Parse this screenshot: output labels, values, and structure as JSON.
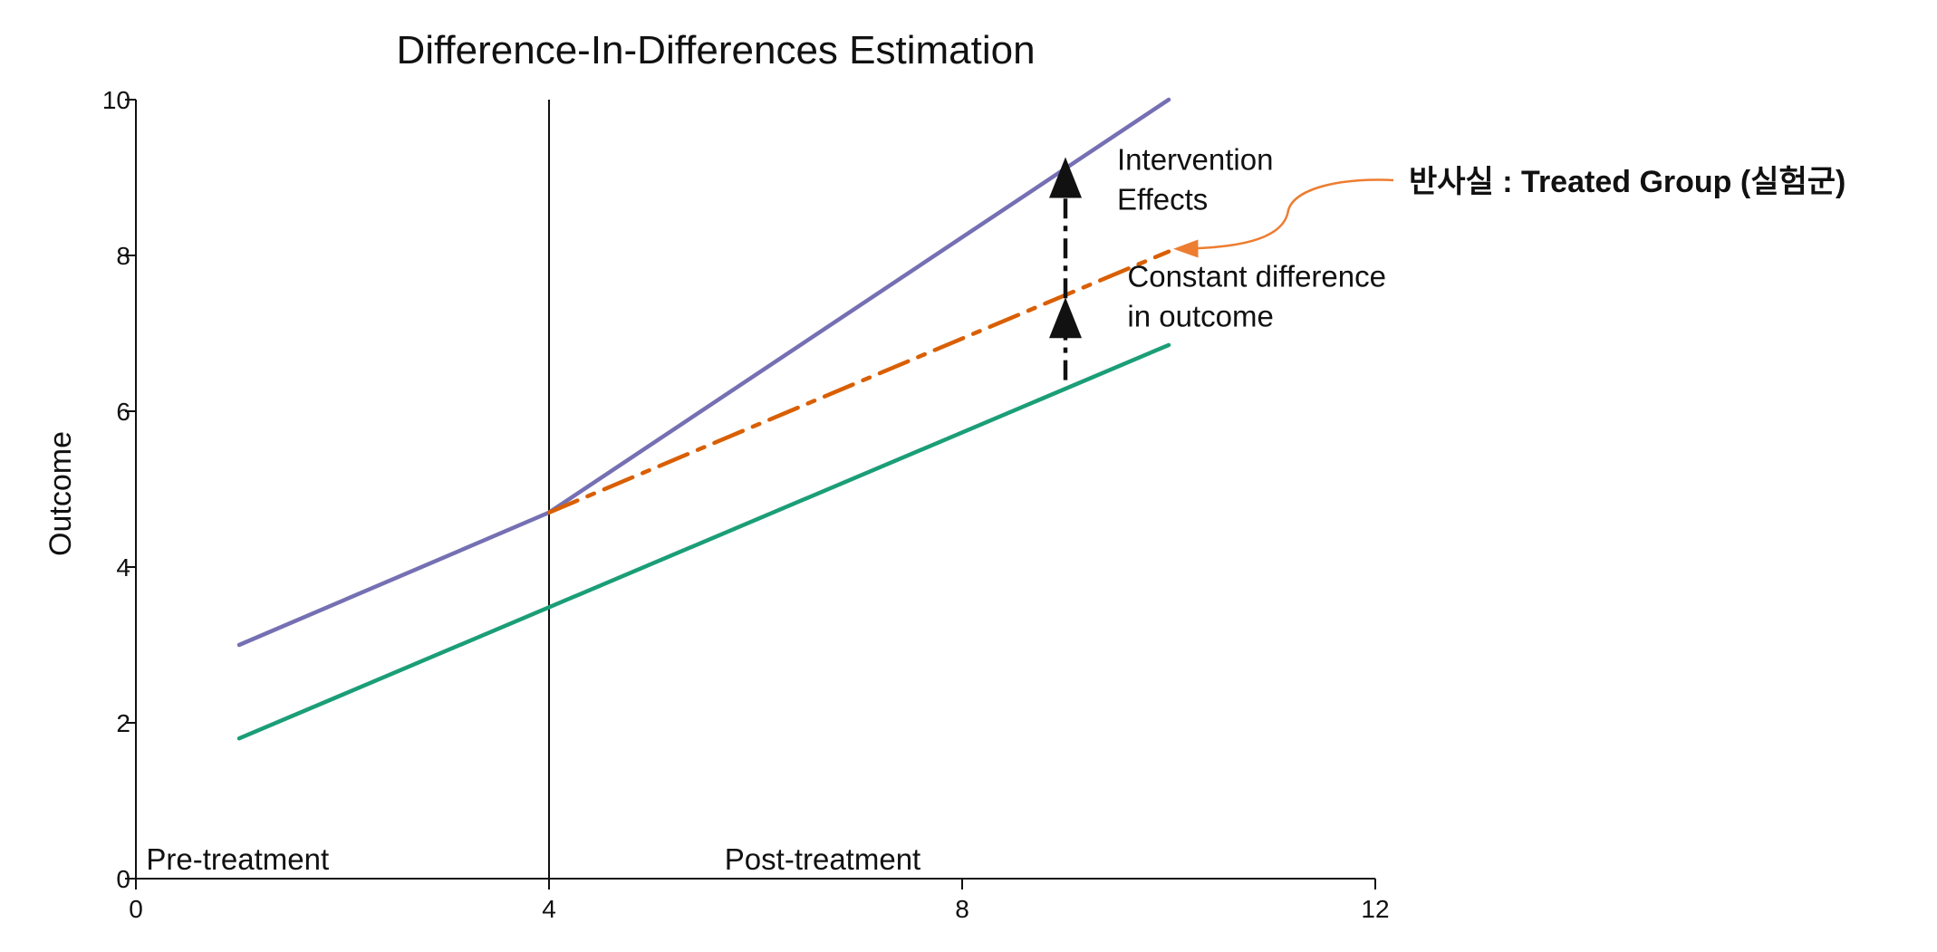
{
  "chart_data": {
    "type": "line",
    "title": "Difference-In-Differences Estimation",
    "xlabel": "",
    "ylabel": "Outcome",
    "xlim": [
      0,
      12
    ],
    "ylim": [
      0,
      10
    ],
    "x_ticks": [
      0,
      4,
      8,
      12
    ],
    "y_ticks": [
      0,
      2,
      4,
      6,
      8,
      10
    ],
    "grid": false,
    "series": [
      {
        "style": "solid",
        "color": "#7570b3",
        "x": [
          1,
          4,
          10
        ],
        "y": [
          3.0,
          4.7,
          10.0
        ]
      },
      {
        "style": "solid",
        "color": "#1b9e77",
        "x": [
          1,
          10
        ],
        "y": [
          1.8,
          6.85
        ]
      },
      {
        "style": "dash-dot",
        "color": "#d95f02",
        "x": [
          4,
          10
        ],
        "y": [
          4.7,
          8.05
        ]
      }
    ],
    "vertical_line": {
      "x": 4,
      "color": "#111111"
    },
    "effect_arrows": [
      {
        "x": 9,
        "from": 7.45,
        "to": 9.0
      },
      {
        "x": 9,
        "from": 6.4,
        "to": 7.2
      }
    ],
    "period_labels": [
      {
        "text": "Pre-treatment",
        "x": 0.1,
        "y": 0.0
      },
      {
        "text": "Post-treatment",
        "x": 5.7,
        "y": 0.0
      }
    ],
    "annotations": [
      {
        "lines": [
          "Intervention",
          "Effects"
        ],
        "x": 9.5,
        "y": 9.1
      },
      {
        "lines": [
          "Constant difference",
          "in outcome"
        ],
        "x": 9.6,
        "y": 7.6
      }
    ],
    "callout": {
      "text": "반사실 : Treated Group (실험군)",
      "color": "#ed7d31",
      "target_x": 10.05,
      "target_y": 8.05
    }
  }
}
